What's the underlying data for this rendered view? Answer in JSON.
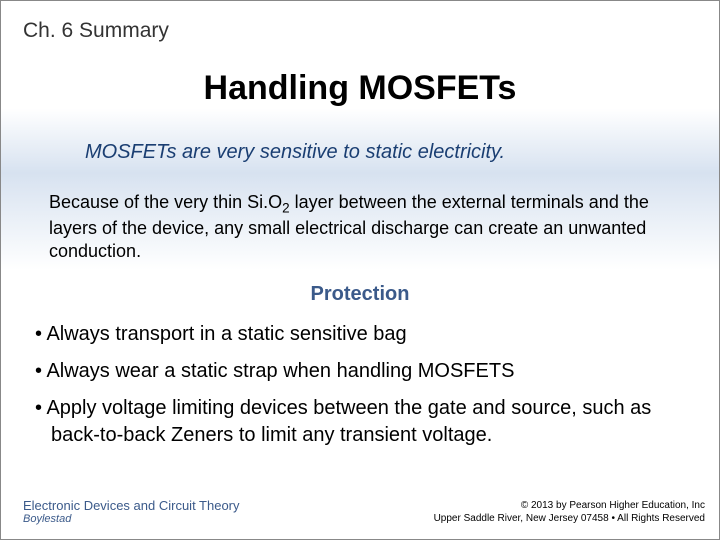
{
  "chapter": "Ch. 6 Summary",
  "title": "Handling MOSFETs",
  "intro": "MOSFETs are very sensitive to static electricity.",
  "body_pre": "Because of the very thin Si.O",
  "body_sub": "2",
  "body_post": " layer between the external terminals and the layers of the device, any small electrical discharge can create an unwanted conduction.",
  "subheading": "Protection",
  "bullets": {
    "b1": "• Always transport in a static sensitive bag",
    "b2": "• Always wear a static strap when handling MOSFETS",
    "b3": "• Apply voltage limiting devices between the gate and source, such as back-to-back Zeners to limit any transient voltage."
  },
  "footer": {
    "book_title": "Electronic Devices and Circuit Theory",
    "author": "Boylestad",
    "copyright": "© 2013 by Pearson Higher Education, Inc",
    "address": "Upper Saddle River, New Jersey 07458 • All Rights Reserved"
  },
  "colors": {
    "accent_blue": "#3b5a8a",
    "intro_blue": "#1a3e72",
    "gradient_mid": "#d7e2f0"
  },
  "fonts": {
    "chapter_size": 21,
    "title_size": 34,
    "intro_size": 20,
    "body_size": 18,
    "subheading_size": 20,
    "bullet_size": 20,
    "footer_title_size": 13,
    "footer_small_size": 10
  }
}
